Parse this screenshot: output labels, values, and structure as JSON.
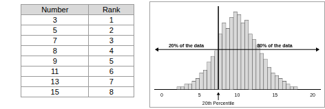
{
  "table": {
    "header": [
      "Number",
      "Rank"
    ],
    "rows": [
      [
        3,
        1
      ],
      [
        5,
        2
      ],
      [
        7,
        3
      ],
      [
        8,
        4
      ],
      [
        9,
        5
      ],
      [
        11,
        6
      ],
      [
        13,
        7
      ],
      [
        15,
        8
      ]
    ]
  },
  "chart_data": {
    "type": "histogram",
    "bins": [
      2.0,
      2.5,
      3.0,
      3.5,
      4.0,
      4.5,
      5.0,
      5.5,
      6.0,
      6.5,
      7.0,
      7.5,
      8.0,
      8.5,
      9.0,
      9.5,
      10.0,
      10.5,
      11.0,
      11.5,
      12.0,
      12.5,
      13.0,
      13.5,
      14.0,
      14.5,
      15.0,
      15.5,
      16.0,
      16.5,
      17.0,
      17.5,
      18.0
    ],
    "values": [
      1,
      1,
      2,
      2,
      3,
      4,
      6,
      7,
      10,
      12,
      14,
      20,
      24,
      22,
      26,
      28,
      27,
      24,
      25,
      20,
      18,
      16,
      13,
      11,
      8,
      6,
      5,
      4,
      3,
      2,
      1,
      1
    ],
    "color": "#d9d9d9",
    "xlim": [
      -1,
      21
    ],
    "xticks": [
      0,
      5,
      10,
      15,
      20
    ],
    "ylim": [
      0,
      30
    ],
    "tick_labels": "x",
    "grid": false,
    "percentile": 7.5,
    "annotations": {
      "left_label": "20% of the data",
      "right_label": "80% of the data",
      "percentile_label": "20th Percentile"
    }
  }
}
